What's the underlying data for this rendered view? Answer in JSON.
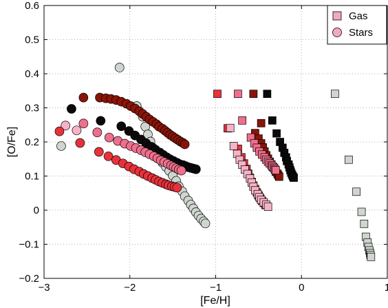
{
  "chart_data": {
    "type": "scatter",
    "xlabel": "[Fe/H]",
    "ylabel": "[O/Fe]",
    "xlim": [
      -3,
      1
    ],
    "ylim": [
      -0.2,
      0.6
    ],
    "xticks": [
      "−3",
      "−2",
      "−1",
      "0",
      "1"
    ],
    "yticks": [
      "−0.2",
      "−0.1",
      "0",
      "0.1",
      "0.2",
      "0.3",
      "0.4",
      "0.5",
      "0.6"
    ],
    "grid": true,
    "legend": {
      "position": "top-right",
      "entries": [
        {
          "label": "Gas",
          "marker": "square",
          "color": "#f2a8bf"
        },
        {
          "label": "Stars",
          "marker": "circle",
          "color": "#f2a8bf"
        }
      ]
    },
    "series": [
      {
        "marker": "circle",
        "color": "#cfd6cf",
        "points": [
          [
            -2.12,
            0.418
          ],
          [
            -1.92,
            0.305
          ],
          [
            -2.8,
            0.188
          ],
          [
            -1.85,
            0.274
          ],
          [
            -1.82,
            0.245
          ],
          [
            -1.79,
            0.222
          ],
          [
            -1.76,
            0.201
          ],
          [
            -1.73,
            0.183
          ],
          [
            -1.69,
            0.166
          ],
          [
            -1.66,
            0.152
          ],
          [
            -1.62,
            0.139
          ],
          [
            -1.58,
            0.127
          ],
          [
            -1.54,
            0.115
          ],
          [
            -1.5,
            0.101
          ],
          [
            -1.46,
            0.086
          ],
          [
            -1.43,
            0.07
          ],
          [
            -1.39,
            0.055
          ],
          [
            -1.36,
            0.041
          ],
          [
            -1.32,
            0.028
          ],
          [
            -1.29,
            0.016
          ],
          [
            -1.26,
            0.005
          ],
          [
            -1.23,
            -0.006
          ],
          [
            -1.2,
            -0.016
          ],
          [
            -1.17,
            -0.025
          ],
          [
            -1.14,
            -0.033
          ],
          [
            -1.12,
            -0.039
          ]
        ]
      },
      {
        "marker": "circle",
        "color": "#8b1408",
        "points": [
          [
            -2.54,
            0.33
          ],
          [
            -2.35,
            0.33
          ],
          [
            -2.28,
            0.328
          ],
          [
            -2.22,
            0.326
          ],
          [
            -2.16,
            0.323
          ],
          [
            -2.1,
            0.318
          ],
          [
            -2.04,
            0.312
          ],
          [
            -1.99,
            0.305
          ],
          [
            -1.94,
            0.298
          ],
          [
            -1.89,
            0.29
          ],
          [
            -1.85,
            0.282
          ],
          [
            -1.81,
            0.274
          ],
          [
            -1.77,
            0.266
          ],
          [
            -1.73,
            0.259
          ],
          [
            -1.69,
            0.252
          ],
          [
            -1.66,
            0.245
          ],
          [
            -1.62,
            0.239
          ],
          [
            -1.59,
            0.233
          ],
          [
            -1.56,
            0.227
          ],
          [
            -1.53,
            0.221
          ],
          [
            -1.5,
            0.216
          ],
          [
            -1.47,
            0.211
          ],
          [
            -1.44,
            0.206
          ],
          [
            -1.41,
            0.201
          ],
          [
            -1.38,
            0.197
          ],
          [
            -1.36,
            0.193
          ]
        ]
      },
      {
        "marker": "circle",
        "color": "#0a0a0a",
        "points": [
          [
            -2.68,
            0.297
          ],
          [
            -2.34,
            0.262
          ],
          [
            -2.1,
            0.246
          ],
          [
            -2.01,
            0.232
          ],
          [
            -1.94,
            0.219
          ],
          [
            -1.87,
            0.207
          ],
          [
            -1.81,
            0.196
          ],
          [
            -1.75,
            0.186
          ],
          [
            -1.7,
            0.177
          ],
          [
            -1.65,
            0.169
          ],
          [
            -1.61,
            0.162
          ],
          [
            -1.57,
            0.155
          ],
          [
            -1.53,
            0.149
          ],
          [
            -1.49,
            0.144
          ],
          [
            -1.45,
            0.139
          ],
          [
            -1.42,
            0.135
          ],
          [
            -1.38,
            0.132
          ],
          [
            -1.35,
            0.129
          ],
          [
            -1.32,
            0.126
          ],
          [
            -1.29,
            0.124
          ],
          [
            -1.26,
            0.122
          ],
          [
            -1.23,
            0.12
          ]
        ]
      },
      {
        "marker": "circle",
        "color": "#ef6f8c",
        "points": [
          [
            -2.54,
            0.254
          ],
          [
            -2.38,
            0.228
          ],
          [
            -2.24,
            0.213
          ],
          [
            -2.14,
            0.203
          ],
          [
            -2.06,
            0.195
          ],
          [
            -1.99,
            0.188
          ],
          [
            -1.93,
            0.182
          ],
          [
            -1.87,
            0.176
          ],
          [
            -1.82,
            0.17
          ],
          [
            -1.77,
            0.164
          ],
          [
            -1.72,
            0.158
          ],
          [
            -1.68,
            0.152
          ],
          [
            -1.64,
            0.146
          ],
          [
            -1.6,
            0.141
          ],
          [
            -1.56,
            0.136
          ],
          [
            -1.52,
            0.131
          ],
          [
            -1.49,
            0.127
          ],
          [
            -1.46,
            0.123
          ],
          [
            -1.43,
            0.119
          ],
          [
            -1.4,
            0.116
          ]
        ]
      },
      {
        "marker": "circle",
        "color": "#f7b3c6",
        "points": [
          [
            -2.75,
            0.248
          ],
          [
            -2.62,
            0.234
          ]
        ]
      },
      {
        "marker": "circle",
        "color": "#e8323a",
        "points": [
          [
            -2.82,
            0.231
          ],
          [
            -2.58,
            0.197
          ],
          [
            -2.36,
            0.171
          ],
          [
            -2.25,
            0.158
          ],
          [
            -2.16,
            0.147
          ],
          [
            -2.08,
            0.137
          ],
          [
            -2.01,
            0.128
          ],
          [
            -1.95,
            0.12
          ],
          [
            -1.89,
            0.113
          ],
          [
            -1.84,
            0.106
          ],
          [
            -1.79,
            0.1
          ],
          [
            -1.74,
            0.094
          ],
          [
            -1.7,
            0.089
          ],
          [
            -1.66,
            0.084
          ],
          [
            -1.62,
            0.08
          ],
          [
            -1.58,
            0.076
          ],
          [
            -1.55,
            0.073
          ],
          [
            -1.51,
            0.07
          ],
          [
            -1.48,
            0.068
          ],
          [
            -1.45,
            0.066
          ]
        ]
      },
      {
        "marker": "square",
        "color": "#cfd6cf",
        "points": [
          [
            0.39,
            0.341
          ],
          [
            0.55,
            0.148
          ],
          [
            0.64,
            0.054
          ],
          [
            0.7,
            -0.005
          ],
          [
            0.73,
            -0.04
          ],
          [
            0.75,
            -0.078
          ],
          [
            0.77,
            -0.095
          ],
          [
            0.78,
            -0.108
          ],
          [
            0.79,
            -0.118
          ],
          [
            0.8,
            -0.126
          ],
          [
            0.805,
            -0.132
          ],
          [
            0.81,
            -0.137
          ]
        ]
      },
      {
        "marker": "square",
        "color": "#8b1408",
        "points": [
          [
            -0.56,
            0.341
          ],
          [
            -0.47,
            0.255
          ],
          [
            -0.54,
            0.226
          ],
          [
            -0.5,
            0.21
          ],
          [
            -0.47,
            0.196
          ],
          [
            -0.45,
            0.184
          ],
          [
            -0.43,
            0.172
          ],
          [
            -0.41,
            0.161
          ],
          [
            -0.39,
            0.151
          ],
          [
            -0.37,
            0.142
          ],
          [
            -0.35,
            0.134
          ],
          [
            -0.33,
            0.126
          ],
          [
            -0.31,
            0.119
          ],
          [
            -0.3,
            0.113
          ],
          [
            -0.28,
            0.107
          ],
          [
            -0.27,
            0.102
          ],
          [
            -0.26,
            0.098
          ]
        ]
      },
      {
        "marker": "square",
        "color": "#0a0a0a",
        "points": [
          [
            -0.4,
            0.341
          ],
          [
            -0.34,
            0.263
          ],
          [
            -0.29,
            0.225
          ],
          [
            -0.25,
            0.2
          ],
          [
            -0.22,
            0.183
          ],
          [
            -0.2,
            0.168
          ],
          [
            -0.18,
            0.155
          ],
          [
            -0.17,
            0.144
          ],
          [
            -0.15,
            0.134
          ],
          [
            -0.14,
            0.125
          ],
          [
            -0.13,
            0.117
          ],
          [
            -0.12,
            0.11
          ],
          [
            -0.11,
            0.104
          ],
          [
            -0.1,
            0.099
          ],
          [
            -0.09,
            0.095
          ]
        ]
      },
      {
        "marker": "square",
        "color": "#ef6f8c",
        "points": [
          [
            -0.74,
            0.341
          ],
          [
            -0.69,
            0.263
          ],
          [
            -0.59,
            0.213
          ],
          [
            -0.55,
            0.196
          ],
          [
            -0.52,
            0.183
          ],
          [
            -0.49,
            0.172
          ],
          [
            -0.46,
            0.163
          ],
          [
            -0.43,
            0.155
          ],
          [
            -0.41,
            0.148
          ],
          [
            -0.39,
            0.142
          ],
          [
            -0.37,
            0.137
          ],
          [
            -0.35,
            0.132
          ],
          [
            -0.34,
            0.128
          ],
          [
            -0.32,
            0.124
          ],
          [
            -0.31,
            0.12
          ],
          [
            -0.3,
            0.117
          ]
        ]
      },
      {
        "marker": "square",
        "color": "#e8323a",
        "points": [
          [
            -0.98,
            0.341
          ],
          [
            -0.86,
            0.24
          ],
          [
            -0.74,
            0.18
          ],
          [
            -0.7,
            0.155
          ],
          [
            -0.67,
            0.137
          ],
          [
            -0.64,
            0.121
          ],
          [
            -0.62,
            0.107
          ],
          [
            -0.6,
            0.095
          ],
          [
            -0.58,
            0.083
          ],
          [
            -0.56,
            0.072
          ],
          [
            -0.54,
            0.062
          ],
          [
            -0.52,
            0.052
          ],
          [
            -0.5,
            0.043
          ],
          [
            -0.48,
            0.035
          ],
          [
            -0.46,
            0.027
          ],
          [
            -0.44,
            0.021
          ],
          [
            -0.42,
            0.015
          ]
        ]
      },
      {
        "marker": "square",
        "color": "#f7b3c6",
        "points": [
          [
            -0.83,
            0.241
          ],
          [
            -0.79,
            0.188
          ],
          [
            -0.75,
            0.165
          ],
          [
            -0.72,
            0.148
          ],
          [
            -0.69,
            0.133
          ],
          [
            -0.66,
            0.119
          ],
          [
            -0.63,
            0.106
          ],
          [
            -0.6,
            0.093
          ],
          [
            -0.58,
            0.081
          ],
          [
            -0.56,
            0.069
          ],
          [
            -0.54,
            0.058
          ],
          [
            -0.51,
            0.047
          ],
          [
            -0.49,
            0.038
          ],
          [
            -0.47,
            0.03
          ],
          [
            -0.44,
            0.023
          ],
          [
            -0.41,
            0.016
          ],
          [
            -0.39,
            0.01
          ]
        ]
      }
    ]
  }
}
